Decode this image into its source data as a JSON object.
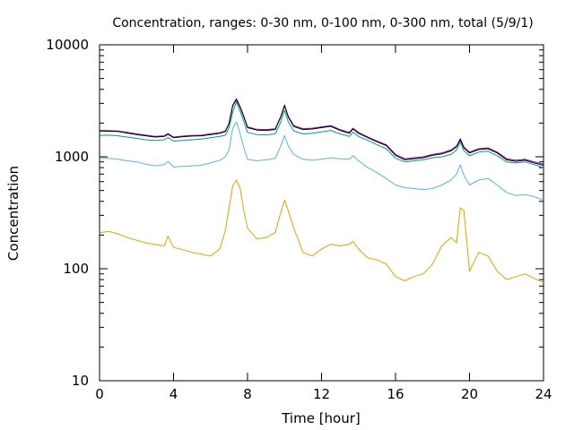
{
  "chart_data": {
    "type": "line",
    "title": "Concentration, ranges: 0-30 nm, 0-100 nm, 0-300 nm, total (5/9/1)",
    "xlabel": "Time [hour]",
    "ylabel": "Concentration",
    "xlim": [
      0,
      24
    ],
    "ylim": [
      10,
      10000
    ],
    "yscale": "log",
    "grid": false,
    "legend": "none",
    "x_ticks": [
      "0",
      "4",
      "8",
      "12",
      "16",
      "20",
      "24"
    ],
    "y_ticks": [
      "10",
      "100",
      "1000",
      "10000"
    ],
    "x_tick_values": [
      0,
      4,
      8,
      12,
      16,
      20,
      24
    ],
    "y_tick_values": [
      10,
      100,
      1000,
      10000
    ],
    "x": [
      0,
      0.5,
      1,
      1.5,
      2,
      2.5,
      3,
      3.5,
      3.7,
      4,
      4.5,
      5,
      5.5,
      6,
      6.5,
      6.8,
      7,
      7.2,
      7.4,
      7.6,
      7.8,
      8,
      8.5,
      9,
      9.5,
      9.8,
      10,
      10.2,
      10.5,
      11,
      11.5,
      12,
      12.5,
      13,
      13.5,
      13.7,
      14,
      14.5,
      15,
      15.5,
      16,
      16.5,
      17,
      17.5,
      18,
      18.5,
      19,
      19.3,
      19.5,
      19.7,
      20,
      20.5,
      21,
      21.5,
      22,
      22.5,
      23,
      23.5,
      24
    ],
    "series": [
      {
        "color": "#9400d3",
        "values": [
          1720,
          1710,
          1700,
          1650,
          1600,
          1560,
          1520,
          1540,
          1610,
          1500,
          1530,
          1550,
          1560,
          1600,
          1640,
          1700,
          2000,
          2900,
          3300,
          2800,
          2300,
          1850,
          1760,
          1750,
          1780,
          2300,
          2900,
          2300,
          1900,
          1780,
          1800,
          1850,
          1900,
          1750,
          1650,
          1800,
          1650,
          1500,
          1380,
          1280,
          1050,
          960,
          980,
          1000,
          1050,
          1080,
          1150,
          1250,
          1450,
          1220,
          1100,
          1180,
          1200,
          1100,
          960,
          930,
          950,
          900,
          860
        ]
      },
      {
        "color": "#000000",
        "values": [
          1700,
          1690,
          1680,
          1630,
          1580,
          1540,
          1500,
          1520,
          1590,
          1480,
          1510,
          1530,
          1540,
          1580,
          1620,
          1680,
          1980,
          2850,
          3250,
          2760,
          2260,
          1820,
          1730,
          1720,
          1750,
          2260,
          2850,
          2260,
          1860,
          1750,
          1770,
          1820,
          1870,
          1720,
          1620,
          1770,
          1620,
          1480,
          1360,
          1260,
          1030,
          940,
          960,
          980,
          1030,
          1060,
          1130,
          1230,
          1420,
          1200,
          1080,
          1160,
          1180,
          1080,
          940,
          910,
          930,
          880,
          840
        ]
      },
      {
        "color": "#009e73",
        "values": [
          1550,
          1560,
          1540,
          1500,
          1460,
          1420,
          1400,
          1420,
          1490,
          1380,
          1400,
          1420,
          1440,
          1480,
          1520,
          1560,
          1820,
          2500,
          3100,
          2550,
          2050,
          1650,
          1580,
          1570,
          1600,
          2050,
          2600,
          2050,
          1700,
          1600,
          1620,
          1670,
          1720,
          1600,
          1520,
          1660,
          1520,
          1400,
          1280,
          1180,
          970,
          900,
          920,
          940,
          980,
          1000,
          1050,
          1150,
          1350,
          1130,
          1020,
          1100,
          1120,
          1020,
          900,
          880,
          900,
          850,
          800
        ]
      },
      {
        "color": "#56b4e9",
        "values": [
          980,
          970,
          950,
          920,
          900,
          860,
          830,
          850,
          910,
          810,
          820,
          830,
          840,
          880,
          930,
          1000,
          1150,
          1800,
          2050,
          1600,
          1200,
          950,
          920,
          940,
          970,
          1250,
          1550,
          1250,
          1050,
          950,
          930,
          950,
          980,
          960,
          950,
          1020,
          920,
          800,
          720,
          640,
          560,
          530,
          520,
          510,
          520,
          560,
          620,
          700,
          850,
          680,
          560,
          620,
          640,
          560,
          480,
          450,
          460,
          440,
          410
        ]
      },
      {
        "color": "#e69f00",
        "values": [
          210,
          215,
          205,
          190,
          180,
          170,
          165,
          160,
          195,
          155,
          148,
          140,
          135,
          130,
          150,
          220,
          350,
          550,
          620,
          520,
          330,
          230,
          185,
          190,
          210,
          320,
          410,
          330,
          230,
          140,
          130,
          150,
          165,
          160,
          165,
          175,
          150,
          125,
          120,
          110,
          85,
          78,
          85,
          90,
          110,
          160,
          190,
          170,
          350,
          330,
          95,
          140,
          130,
          95,
          80,
          85,
          90,
          82,
          75
        ]
      }
    ]
  }
}
